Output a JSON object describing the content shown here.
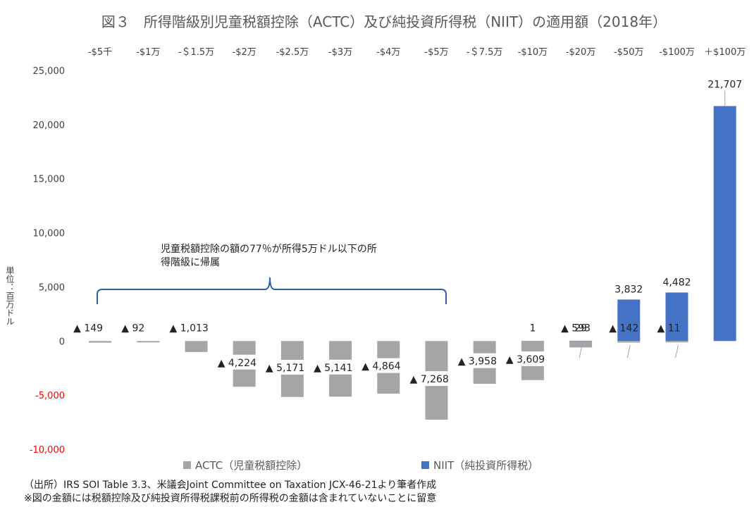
{
  "chart_data": {
    "type": "bar",
    "title": "図３　所得階級別児童税額控除（ACTC）及び純投資所得税（NIIT）の適用額（2018年）",
    "ylabel": "単位：百万ドル",
    "ylim": [
      -10000,
      25000
    ],
    "yticks": [
      "25,000",
      "20,000",
      "15,000",
      "10,000",
      "5,000",
      "0",
      "-5,000",
      "-10,000"
    ],
    "ytick_values": [
      25000,
      20000,
      15000,
      10000,
      5000,
      0,
      -5000,
      -10000
    ],
    "negative_tick_color": "#ff0000",
    "grid": false,
    "categories": [
      "-$5千",
      "-$1万",
      "-＄1.5万",
      "-$2万",
      "-$2.5万",
      "-$3万",
      "-$4万",
      "-$5万",
      "-＄7.5万",
      "-$10万",
      "-$20万",
      "-$50万",
      "-$100万",
      "＋$100万"
    ],
    "series": [
      {
        "name": "ACTC（児童税額控除）",
        "color": "#a5a5a5",
        "values": [
          -149,
          -92,
          -1013,
          -4224,
          -5171,
          -5141,
          -4864,
          -7268,
          -3958,
          -3609,
          -593,
          -142,
          -11,
          0
        ],
        "labels": [
          "▲ 149",
          "▲ 92",
          "▲ 1,013",
          "▲ 4,224",
          "▲ 5,171",
          "▲ 5,141",
          "▲ 4,864",
          "▲ 7,268",
          "▲ 3,958",
          "▲ 3,609",
          "▲ 593",
          "▲ 142",
          "▲ 11",
          ""
        ]
      },
      {
        "name": "NIIT（純投資所得税）",
        "color": "#4472c4",
        "values": [
          0,
          0,
          0,
          0,
          0,
          0,
          0,
          0,
          0,
          1,
          29,
          3832,
          4482,
          21707
        ],
        "labels": [
          "",
          "",
          "",
          "",
          "",
          "",
          "",
          "",
          "",
          "1",
          "29",
          "3,832",
          "4,482",
          "21,707"
        ]
      }
    ],
    "annotation": {
      "lines": [
        "児童税額控除の額の77％が所得5万ドル以下の所",
        "得階級に帰属"
      ],
      "bracket_color": "#2e5fa8"
    },
    "legend": "bottom"
  },
  "footnotes": {
    "source": "（出所）IRS SOI Table 3.3、米議会Joint Committee on Taxation JCX-46-21より筆者作成",
    "note": "※図の金額には税額控除及び純投資所得税課税前の所得税の金額は含まれていないことに留意"
  }
}
